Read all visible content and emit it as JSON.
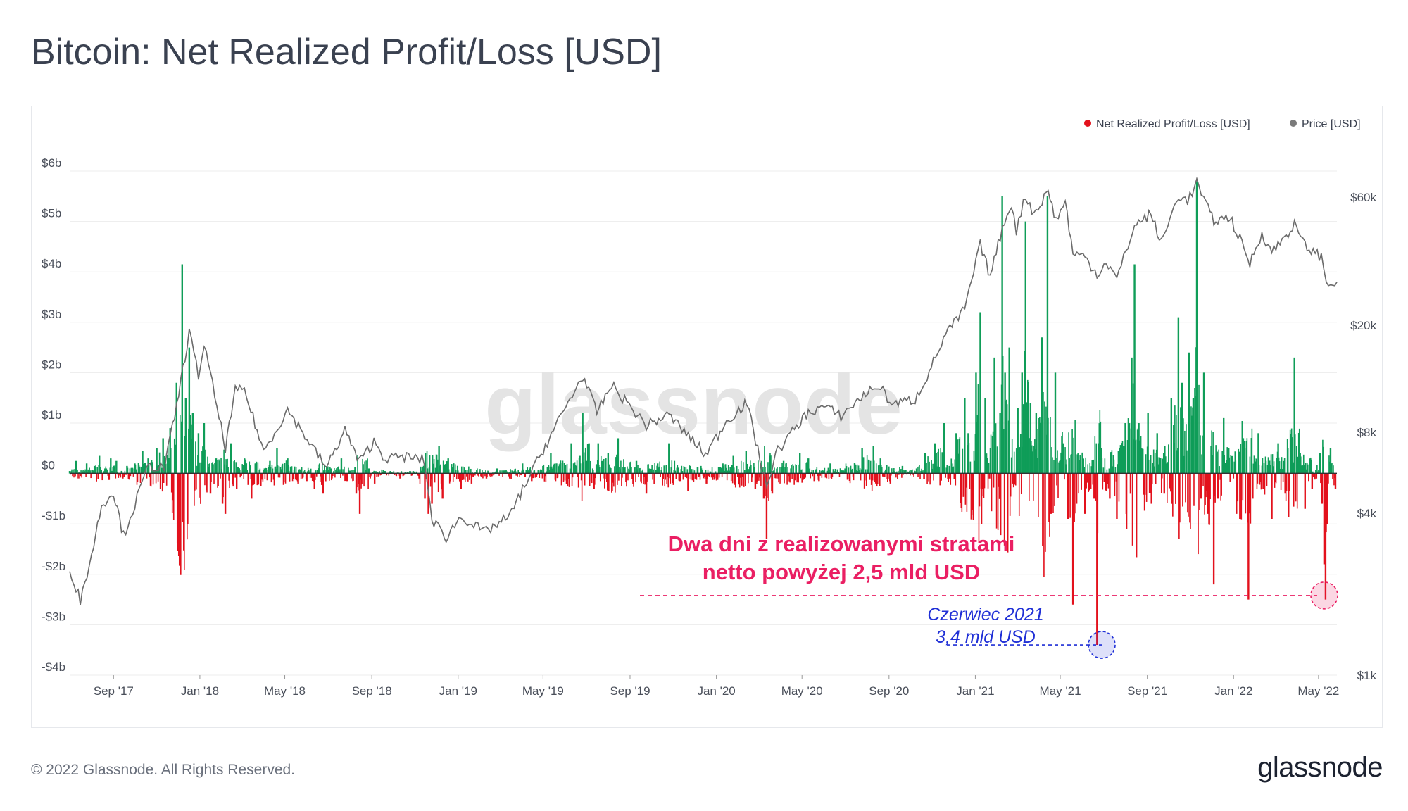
{
  "title": "Bitcoin: Net Realized Profit/Loss [USD]",
  "footer": "© 2022 Glassnode. All Rights Reserved.",
  "brand": "glassnode",
  "watermark": "glassnode",
  "colors": {
    "profit": "#0f9d58",
    "loss": "#e3111c",
    "price": "#6b6b6b",
    "annotation_red": "#ea1f63",
    "annotation_blue": "#1f2fd6"
  },
  "chart_data": {
    "type": "bar",
    "legend": [
      {
        "name": "Net Realized Profit/Loss [USD]",
        "color": "#e3111c"
      },
      {
        "name": "Price [USD]",
        "color": "#7a7a7a"
      }
    ],
    "legend_position": "top-right",
    "x_range": [
      "2017-07-01",
      "2022-05-27"
    ],
    "x_ticks": [
      {
        "date": "2017-09-01",
        "label": "Sep '17"
      },
      {
        "date": "2018-01-01",
        "label": "Jan '18"
      },
      {
        "date": "2018-05-01",
        "label": "May '18"
      },
      {
        "date": "2018-09-01",
        "label": "Sep '18"
      },
      {
        "date": "2019-01-01",
        "label": "Jan '19"
      },
      {
        "date": "2019-05-01",
        "label": "May '19"
      },
      {
        "date": "2019-09-01",
        "label": "Sep '19"
      },
      {
        "date": "2020-01-01",
        "label": "Jan '20"
      },
      {
        "date": "2020-05-01",
        "label": "May '20"
      },
      {
        "date": "2020-09-01",
        "label": "Sep '20"
      },
      {
        "date": "2021-01-01",
        "label": "Jan '21"
      },
      {
        "date": "2021-05-01",
        "label": "May '21"
      },
      {
        "date": "2021-09-01",
        "label": "Sep '21"
      },
      {
        "date": "2022-01-01",
        "label": "Jan '22"
      },
      {
        "date": "2022-05-01",
        "label": "May '22"
      }
    ],
    "left_axis": {
      "range": [
        -4,
        6
      ],
      "ticks": [
        {
          "value": 6,
          "label": "$6b"
        },
        {
          "value": 5,
          "label": "$5b"
        },
        {
          "value": 4,
          "label": "$4b"
        },
        {
          "value": 3,
          "label": "$3b"
        },
        {
          "value": 2,
          "label": "$2b"
        },
        {
          "value": 1,
          "label": "$1b"
        },
        {
          "value": 0,
          "label": "$0"
        },
        {
          "value": -1,
          "label": "-$1b"
        },
        {
          "value": -2,
          "label": "-$2b"
        },
        {
          "value": -3,
          "label": "-$3b"
        },
        {
          "value": -4,
          "label": "-$4b"
        }
      ]
    },
    "right_axis": {
      "scale": "log",
      "range": [
        1000,
        75000
      ],
      "ticks": [
        {
          "value": 60000,
          "label": "$60k"
        },
        {
          "value": 20000,
          "label": "$20k"
        },
        {
          "value": 8000,
          "label": "$8k"
        },
        {
          "value": 4000,
          "label": "$4k"
        },
        {
          "value": 1000,
          "label": "$1k"
        }
      ]
    },
    "net_realized_pl_usd_b": [
      [
        "2017-07-01",
        0.05
      ],
      [
        "2017-07-10",
        0.25
      ],
      [
        "2017-07-16",
        -0.05
      ],
      [
        "2017-07-25",
        0.2
      ],
      [
        "2017-08-05",
        0.15
      ],
      [
        "2017-08-12",
        0.35
      ],
      [
        "2017-08-20",
        0.1
      ],
      [
        "2017-08-28",
        0.3
      ],
      [
        "2017-09-05",
        0.25
      ],
      [
        "2017-09-14",
        -0.1
      ],
      [
        "2017-09-20",
        0.15
      ],
      [
        "2017-10-01",
        0.2
      ],
      [
        "2017-10-12",
        0.45
      ],
      [
        "2017-10-20",
        0.3
      ],
      [
        "2017-11-01",
        0.5
      ],
      [
        "2017-11-10",
        0.7
      ],
      [
        "2017-11-20",
        0.9
      ],
      [
        "2017-11-29",
        1.8
      ],
      [
        "2017-12-07",
        4.15
      ],
      [
        "2017-12-12",
        1.5
      ],
      [
        "2017-12-17",
        2.5
      ],
      [
        "2017-12-22",
        1.2
      ],
      [
        "2017-12-30",
        0.8
      ],
      [
        "2018-01-07",
        1.0
      ],
      [
        "2018-01-16",
        -0.4
      ],
      [
        "2018-01-24",
        0.3
      ],
      [
        "2018-02-02",
        -0.6
      ],
      [
        "2018-02-06",
        -0.8
      ],
      [
        "2018-02-14",
        0.6
      ],
      [
        "2018-02-22",
        -0.3
      ],
      [
        "2018-03-05",
        0.3
      ],
      [
        "2018-03-15",
        -0.5
      ],
      [
        "2018-03-28",
        -0.25
      ],
      [
        "2018-04-10",
        0.25
      ],
      [
        "2018-04-20",
        0.5
      ],
      [
        "2018-05-05",
        0.3
      ],
      [
        "2018-05-20",
        -0.2
      ],
      [
        "2018-06-01",
        -0.15
      ],
      [
        "2018-06-12",
        -0.3
      ],
      [
        "2018-06-24",
        -0.4
      ],
      [
        "2018-07-05",
        0.1
      ],
      [
        "2018-07-20",
        0.3
      ],
      [
        "2018-07-28",
        -0.15
      ],
      [
        "2018-08-10",
        -0.4
      ],
      [
        "2018-08-15",
        -0.8
      ],
      [
        "2018-08-28",
        0.1
      ],
      [
        "2018-09-05",
        -0.2
      ],
      [
        "2018-09-20",
        0.05
      ],
      [
        "2018-10-11",
        -0.1
      ],
      [
        "2018-10-25",
        0.05
      ],
      [
        "2018-11-07",
        -0.1
      ],
      [
        "2018-11-15",
        -0.5
      ],
      [
        "2018-11-20",
        -0.8
      ],
      [
        "2018-11-25",
        -0.6
      ],
      [
        "2018-12-05",
        0.55
      ],
      [
        "2018-12-10",
        -0.5
      ],
      [
        "2018-12-18",
        0.3
      ],
      [
        "2019-01-05",
        -0.3
      ],
      [
        "2019-01-20",
        -0.2
      ],
      [
        "2019-02-10",
        -0.1
      ],
      [
        "2019-02-25",
        0.1
      ],
      [
        "2019-03-15",
        -0.1
      ],
      [
        "2019-04-02",
        0.2
      ],
      [
        "2019-04-15",
        -0.15
      ],
      [
        "2019-05-01",
        0.15
      ],
      [
        "2019-05-12",
        0.4
      ],
      [
        "2019-05-20",
        0.2
      ],
      [
        "2019-06-10",
        0.6
      ],
      [
        "2019-06-22",
        0.35
      ],
      [
        "2019-06-26",
        1.2
      ],
      [
        "2019-07-05",
        0.6
      ],
      [
        "2019-07-12",
        -0.3
      ],
      [
        "2019-07-18",
        0.6
      ],
      [
        "2019-08-01",
        0.4
      ],
      [
        "2019-08-15",
        0.7
      ],
      [
        "2019-09-10",
        0.25
      ],
      [
        "2019-09-24",
        -0.4
      ],
      [
        "2019-10-10",
        0.2
      ],
      [
        "2019-10-26",
        0.6
      ],
      [
        "2019-11-10",
        -0.15
      ],
      [
        "2019-11-22",
        -0.35
      ],
      [
        "2019-12-10",
        0.15
      ],
      [
        "2019-12-18",
        -0.2
      ],
      [
        "2020-01-10",
        0.2
      ],
      [
        "2020-01-25",
        0.35
      ],
      [
        "2020-02-12",
        0.45
      ],
      [
        "2020-02-25",
        -0.3
      ],
      [
        "2020-03-08",
        -0.5
      ],
      [
        "2020-03-12",
        -1.3
      ],
      [
        "2020-03-20",
        -0.4
      ],
      [
        "2020-04-05",
        0.25
      ],
      [
        "2020-04-28",
        0.4
      ],
      [
        "2020-05-10",
        0.3
      ],
      [
        "2020-05-25",
        -0.15
      ],
      [
        "2020-06-10",
        0.2
      ],
      [
        "2020-07-01",
        0.1
      ],
      [
        "2020-07-25",
        0.5
      ],
      [
        "2020-08-10",
        0.55
      ],
      [
        "2020-08-20",
        0.3
      ],
      [
        "2020-09-03",
        -0.2
      ],
      [
        "2020-09-20",
        0.15
      ],
      [
        "2020-10-10",
        0.1
      ],
      [
        "2020-10-22",
        0.4
      ],
      [
        "2020-11-05",
        0.6
      ],
      [
        "2020-11-18",
        1.0
      ],
      [
        "2020-11-26",
        -0.1
      ],
      [
        "2020-12-05",
        0.8
      ],
      [
        "2020-12-17",
        1.5
      ],
      [
        "2020-12-22",
        0.8
      ],
      [
        "2021-01-02",
        2.0
      ],
      [
        "2021-01-08",
        3.2
      ],
      [
        "2021-01-11",
        -0.3
      ],
      [
        "2021-01-15",
        1.5
      ],
      [
        "2021-01-21",
        -0.1
      ],
      [
        "2021-01-28",
        2.3
      ],
      [
        "2021-02-05",
        1.2
      ],
      [
        "2021-02-08",
        5.5
      ],
      [
        "2021-02-12",
        2.0
      ],
      [
        "2021-02-18",
        2.5
      ],
      [
        "2021-02-23",
        -0.2
      ],
      [
        "2021-03-02",
        1.3
      ],
      [
        "2021-03-08",
        2.0
      ],
      [
        "2021-03-13",
        5.0
      ],
      [
        "2021-03-20",
        1.4
      ],
      [
        "2021-03-28",
        1.2
      ],
      [
        "2021-04-05",
        2.7
      ],
      [
        "2021-04-13",
        5.5
      ],
      [
        "2021-04-18",
        -0.8
      ],
      [
        "2021-04-24",
        2.0
      ],
      [
        "2021-05-05",
        0.6
      ],
      [
        "2021-05-12",
        -0.9
      ],
      [
        "2021-05-19",
        -2.6
      ],
      [
        "2021-05-24",
        -0.6
      ],
      [
        "2021-06-05",
        -0.8
      ],
      [
        "2021-06-13",
        -0.3
      ],
      [
        "2021-06-18",
        -0.5
      ],
      [
        "2021-06-22",
        -3.4
      ],
      [
        "2021-06-28",
        0.5
      ],
      [
        "2021-07-10",
        -0.5
      ],
      [
        "2021-07-20",
        -0.9
      ],
      [
        "2021-08-01",
        1.0
      ],
      [
        "2021-08-10",
        2.3
      ],
      [
        "2021-08-14",
        4.15
      ],
      [
        "2021-08-20",
        1.0
      ],
      [
        "2021-09-02",
        1.2
      ],
      [
        "2021-09-07",
        -0.6
      ],
      [
        "2021-09-15",
        0.8
      ],
      [
        "2021-09-25",
        -0.4
      ],
      [
        "2021-10-05",
        1.5
      ],
      [
        "2021-10-15",
        3.1
      ],
      [
        "2021-10-20",
        1.8
      ],
      [
        "2021-10-30",
        2.4
      ],
      [
        "2021-11-05",
        1.5
      ],
      [
        "2021-11-10",
        5.8
      ],
      [
        "2021-11-16",
        -0.5
      ],
      [
        "2021-11-20",
        2.0
      ],
      [
        "2021-11-26",
        -0.8
      ],
      [
        "2021-12-04",
        -2.2
      ],
      [
        "2021-12-10",
        -0.5
      ],
      [
        "2021-12-18",
        1.1
      ],
      [
        "2021-12-25",
        0.5
      ],
      [
        "2022-01-05",
        -0.8
      ],
      [
        "2022-01-10",
        -0.9
      ],
      [
        "2022-01-22",
        -2.5
      ],
      [
        "2022-01-28",
        -0.5
      ],
      [
        "2022-02-05",
        0.8
      ],
      [
        "2022-02-12",
        -0.3
      ],
      [
        "2022-02-24",
        -0.9
      ],
      [
        "2022-03-05",
        0.6
      ],
      [
        "2022-03-15",
        -0.4
      ],
      [
        "2022-03-28",
        2.3
      ],
      [
        "2022-04-05",
        0.4
      ],
      [
        "2022-04-12",
        -0.7
      ],
      [
        "2022-04-22",
        -0.3
      ],
      [
        "2022-04-28",
        -0.1
      ],
      [
        "2022-05-03",
        0.4
      ],
      [
        "2022-05-06",
        -0.6
      ],
      [
        "2022-05-09",
        -1.8
      ],
      [
        "2022-05-11",
        -2.5
      ],
      [
        "2022-05-13",
        -1.0
      ],
      [
        "2022-05-18",
        0.5
      ],
      [
        "2022-05-25",
        -0.3
      ]
    ],
    "price_usd": [
      [
        "2017-07-01",
        2500
      ],
      [
        "2017-07-16",
        1900
      ],
      [
        "2017-08-01",
        2800
      ],
      [
        "2017-08-15",
        4300
      ],
      [
        "2017-09-01",
        4800
      ],
      [
        "2017-09-15",
        3300
      ],
      [
        "2017-10-01",
        4300
      ],
      [
        "2017-10-20",
        6000
      ],
      [
        "2017-11-12",
        5900
      ],
      [
        "2017-11-29",
        10000
      ],
      [
        "2017-12-17",
        19000
      ],
      [
        "2017-12-30",
        13000
      ],
      [
        "2018-01-07",
        17000
      ],
      [
        "2018-02-06",
        7000
      ],
      [
        "2018-02-20",
        11400
      ],
      [
        "2018-03-05",
        11500
      ],
      [
        "2018-04-01",
        6800
      ],
      [
        "2018-05-05",
        9700
      ],
      [
        "2018-06-29",
        5900
      ],
      [
        "2018-07-25",
        8200
      ],
      [
        "2018-08-14",
        6200
      ],
      [
        "2018-09-04",
        7400
      ],
      [
        "2018-09-20",
        6400
      ],
      [
        "2018-10-20",
        6500
      ],
      [
        "2018-11-14",
        6300
      ],
      [
        "2018-11-25",
        3800
      ],
      [
        "2018-12-15",
        3250
      ],
      [
        "2019-01-05",
        3900
      ],
      [
        "2019-02-07",
        3400
      ],
      [
        "2019-03-15",
        3900
      ],
      [
        "2019-04-02",
        4900
      ],
      [
        "2019-05-13",
        7900
      ],
      [
        "2019-06-26",
        13000
      ],
      [
        "2019-07-16",
        9500
      ],
      [
        "2019-08-06",
        12000
      ],
      [
        "2019-09-24",
        8500
      ],
      [
        "2019-10-26",
        9300
      ],
      [
        "2019-12-17",
        6600
      ],
      [
        "2020-01-15",
        8800
      ],
      [
        "2020-02-13",
        10300
      ],
      [
        "2020-03-12",
        5000
      ],
      [
        "2020-03-25",
        6700
      ],
      [
        "2020-04-29",
        8800
      ],
      [
        "2020-05-10",
        9500
      ],
      [
        "2020-06-01",
        10000
      ],
      [
        "2020-06-25",
        9200
      ],
      [
        "2020-07-27",
        11000
      ],
      [
        "2020-08-17",
        12000
      ],
      [
        "2020-09-05",
        10200
      ],
      [
        "2020-10-08",
        10600
      ],
      [
        "2020-10-25",
        13000
      ],
      [
        "2020-11-20",
        18500
      ],
      [
        "2020-12-17",
        23000
      ],
      [
        "2021-01-08",
        40000
      ],
      [
        "2021-01-22",
        30500
      ],
      [
        "2021-02-08",
        46000
      ],
      [
        "2021-02-21",
        57000
      ],
      [
        "2021-02-28",
        45000
      ],
      [
        "2021-03-13",
        61000
      ],
      [
        "2021-03-25",
        52000
      ],
      [
        "2021-04-14",
        63500
      ],
      [
        "2021-04-25",
        49000
      ],
      [
        "2021-05-08",
        58000
      ],
      [
        "2021-05-19",
        37000
      ],
      [
        "2021-06-05",
        36000
      ],
      [
        "2021-06-22",
        31000
      ],
      [
        "2021-07-05",
        34500
      ],
      [
        "2021-07-20",
        29800
      ],
      [
        "2021-08-14",
        47000
      ],
      [
        "2021-09-06",
        52000
      ],
      [
        "2021-09-21",
        40500
      ],
      [
        "2021-10-15",
        61000
      ],
      [
        "2021-10-28",
        58000
      ],
      [
        "2021-11-10",
        68000
      ],
      [
        "2021-11-26",
        54000
      ],
      [
        "2021-12-04",
        49000
      ],
      [
        "2021-12-27",
        50500
      ],
      [
        "2022-01-10",
        41800
      ],
      [
        "2022-01-24",
        34000
      ],
      [
        "2022-02-10",
        44000
      ],
      [
        "2022-02-24",
        37500
      ],
      [
        "2022-03-28",
        47300
      ],
      [
        "2022-04-12",
        39500
      ],
      [
        "2022-05-05",
        36000
      ],
      [
        "2022-05-12",
        28700
      ],
      [
        "2022-05-27",
        29000
      ]
    ],
    "annotations": [
      {
        "lines": [
          "Dwa dni z realizowanymi stratami",
          "netto powyżej 2,5 mld USD"
        ],
        "level": -2.42
      },
      {
        "lines": [
          "Czerwiec 2021",
          "3,4 mld USD"
        ],
        "level": -3.4
      }
    ]
  }
}
